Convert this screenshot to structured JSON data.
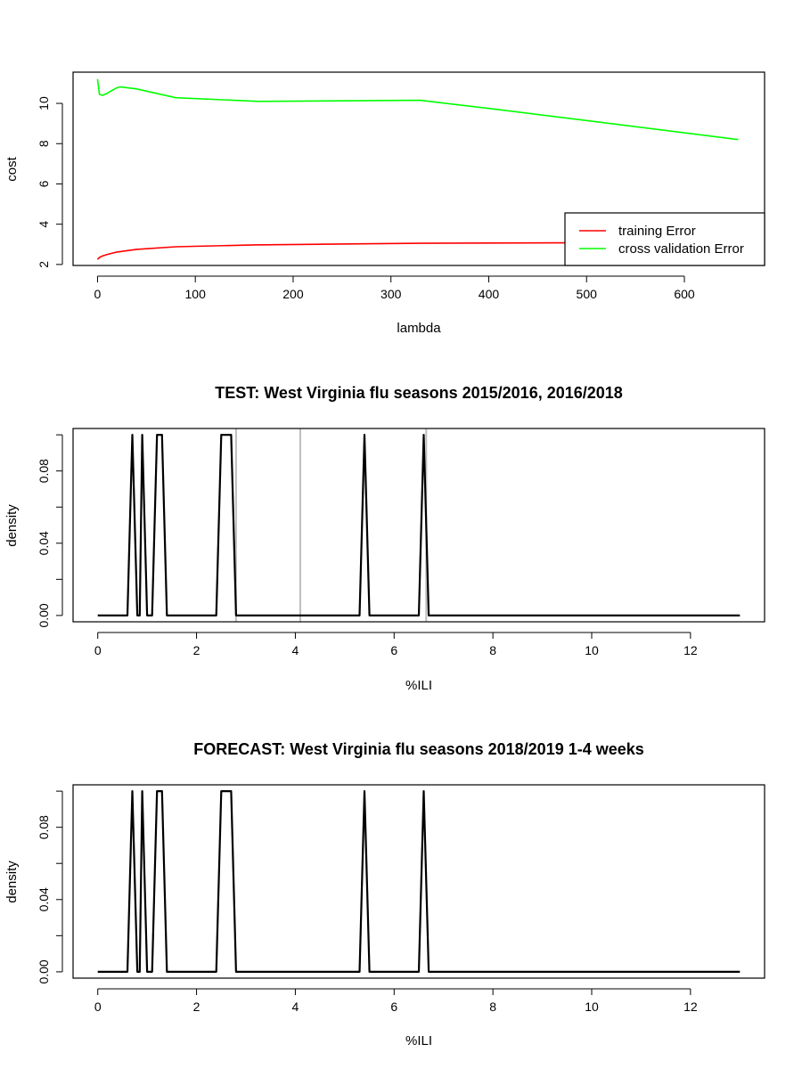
{
  "chart_data": [
    {
      "type": "line",
      "title": "",
      "xlabel": "lambda",
      "ylabel": "cost",
      "xlim": [
        -25,
        682
      ],
      "ylim": [
        1.95,
        11.55
      ],
      "xticks": [
        0,
        100,
        200,
        300,
        400,
        500,
        600
      ],
      "yticks": [
        2,
        4,
        6,
        8,
        10
      ],
      "legend": {
        "placement": "bottom-right"
      },
      "series": [
        {
          "name": "training Error",
          "color": "#ff0000",
          "x": [
            0,
            2,
            5,
            10,
            20,
            40,
            80,
            160,
            330,
            500,
            655
          ],
          "y": [
            2.25,
            2.35,
            2.42,
            2.5,
            2.62,
            2.75,
            2.88,
            2.97,
            3.05,
            3.08,
            3.1
          ]
        },
        {
          "name": "cross validation Error",
          "color": "#00ff00",
          "x": [
            0,
            2,
            5,
            10,
            15,
            20,
            23,
            30,
            40,
            80,
            165,
            330,
            400,
            500,
            655
          ],
          "y": [
            11.2,
            10.45,
            10.4,
            10.5,
            10.65,
            10.78,
            10.82,
            10.78,
            10.72,
            10.28,
            10.1,
            10.15,
            9.75,
            9.15,
            8.2
          ]
        }
      ]
    },
    {
      "type": "line",
      "title": "TEST: West Virginia  flu seasons 2015/2016, 2016/2018",
      "xlabel": "%ILI",
      "ylabel": "density",
      "xlim": [
        -0.5,
        13.5
      ],
      "ylim": [
        -0.0035,
        0.1035
      ],
      "xticks": [
        0,
        2,
        4,
        6,
        8,
        10,
        12
      ],
      "yticks": [
        0.0,
        0.02,
        0.04,
        0.06,
        0.08,
        0.1
      ],
      "ytick_labels": [
        "0.00",
        "",
        "0.04",
        "",
        "0.08",
        ""
      ],
      "vlines": {
        "color": "#bebebe",
        "x": [
          2.8,
          4.1,
          6.65
        ]
      },
      "series": [
        {
          "name": "",
          "color": "#000000",
          "x": [
            0,
            0.6,
            0.7,
            0.8,
            0.85,
            0.9,
            1.0,
            1.1,
            1.2,
            1.3,
            1.4,
            2.4,
            2.5,
            2.7,
            2.8,
            5.3,
            5.4,
            5.5,
            6.5,
            6.6,
            6.7,
            13
          ],
          "y": [
            0,
            0,
            0.1,
            0,
            0,
            0.1,
            0,
            0,
            0.1,
            0.1,
            0,
            0,
            0.1,
            0.1,
            0,
            0,
            0.1,
            0,
            0,
            0.1,
            0,
            0
          ]
        }
      ]
    },
    {
      "type": "line",
      "title": "FORECAST: West Virginia flu seasons 2018/2019 1-4 weeks",
      "xlabel": "%ILI",
      "ylabel": "density",
      "xlim": [
        -0.5,
        13.5
      ],
      "ylim": [
        -0.0035,
        0.1035
      ],
      "xticks": [
        0,
        2,
        4,
        6,
        8,
        10,
        12
      ],
      "yticks": [
        0.0,
        0.02,
        0.04,
        0.06,
        0.08,
        0.1
      ],
      "ytick_labels": [
        "0.00",
        "",
        "0.04",
        "",
        "0.08",
        ""
      ],
      "series": [
        {
          "name": "",
          "color": "#000000",
          "x": [
            0,
            0.6,
            0.7,
            0.8,
            0.85,
            0.9,
            1.0,
            1.1,
            1.2,
            1.3,
            1.4,
            2.4,
            2.5,
            2.7,
            2.8,
            5.3,
            5.4,
            5.5,
            6.5,
            6.6,
            6.7,
            13
          ],
          "y": [
            0,
            0,
            0.1,
            0,
            0,
            0.1,
            0,
            0,
            0.1,
            0.1,
            0,
            0,
            0.1,
            0.1,
            0,
            0,
            0.1,
            0,
            0,
            0.1,
            0,
            0
          ]
        }
      ]
    }
  ]
}
